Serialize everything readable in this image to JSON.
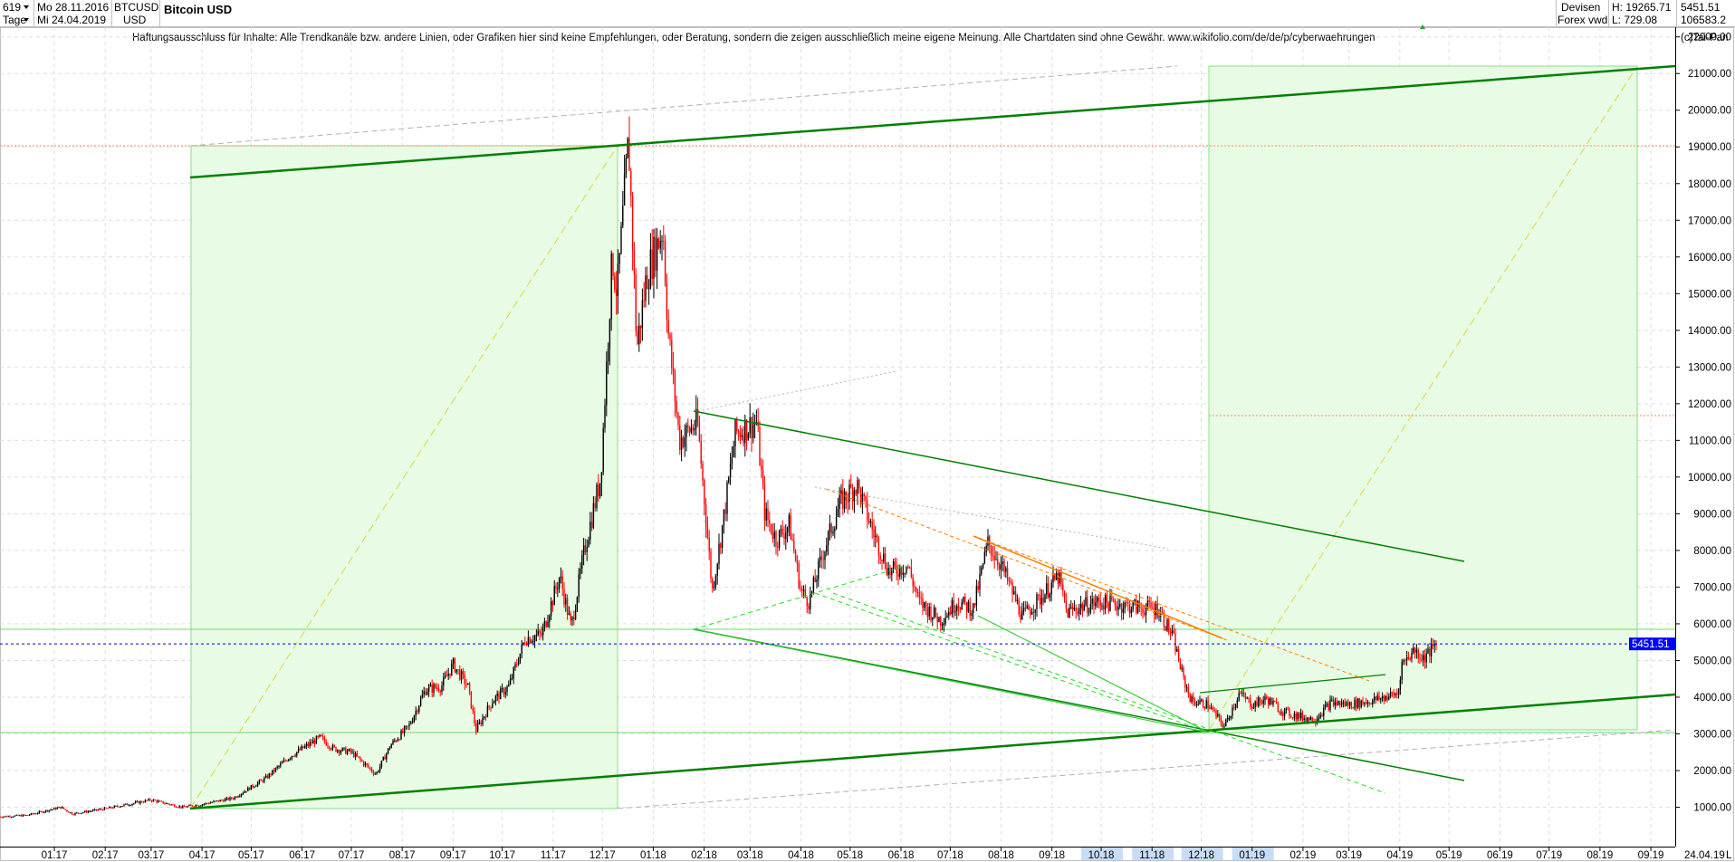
{
  "header": {
    "bar_count": "619",
    "from_date": "Mo 28.11.2016",
    "interval": "Tage",
    "to_date": "Mi 24.04.2019",
    "symbol": "BTCUSD",
    "currency": "USD",
    "title": "Bitcoin USD",
    "market": "Devisen",
    "source": "Forex vwd",
    "high": "H: 19265.71",
    "low": "L: 729.08",
    "last": "5451.51",
    "volume": "106583.2",
    "copyright": "(c)Tai-Pan",
    "disclaimer": "Haftungsausschluss für Inhalte: Alle Trendkanäle bzw. andere Linien, oder Grafiken hier sind keine Empfehlungen, oder Beratung, sondern die zeigen ausschließlich meine eigene Meinung. Alle Chartdaten sind ohne Gewähr.  www.wikifolio.com/de/de/p/cyberwaehrungen",
    "last_date": "24.04.19",
    "axis_marker": "L"
  },
  "chart_data": {
    "type": "candlestick",
    "title": "Bitcoin USD",
    "ylim": [
      1000,
      22000
    ],
    "y_ticks": [
      "1000.00",
      "2000.00",
      "3000.00",
      "4000.00",
      "5000.00",
      "6000.00",
      "7000.00",
      "8000.00",
      "9000.00",
      "10000.00",
      "11000.00",
      "12000.00",
      "13000.00",
      "14000.00",
      "15000.00",
      "16000.00",
      "17000.00",
      "18000.00",
      "19000.00",
      "20000.00",
      "21000.00",
      "22000.00"
    ],
    "x_ticks": [
      "01.17",
      "02.17",
      "03.17",
      "04.17",
      "05.17",
      "06.17",
      "07.17",
      "08.17",
      "09.17",
      "10.17",
      "11.17",
      "12.17",
      "01.18",
      "02.18",
      "03.18",
      "04.18",
      "05.18",
      "06.18",
      "07.18",
      "08.18",
      "09.18",
      "10.18",
      "11.18",
      "12.18",
      "01.19",
      "02.19",
      "03.19",
      "04.19",
      "05.19",
      "06.19",
      "07.19",
      "08.19",
      "09.19"
    ],
    "x_ticks_highlighted": [
      "10.18",
      "11.18",
      "12.18",
      "01.19"
    ],
    "last_price": 5451.51,
    "last_label": "5451.51",
    "price_path": [
      [
        "2016-11-28",
        740
      ],
      [
        "2016-12-15",
        780
      ],
      [
        "2017-01-05",
        1000
      ],
      [
        "2017-01-12",
        820
      ],
      [
        "2017-02-01",
        960
      ],
      [
        "2017-03-01",
        1200
      ],
      [
        "2017-03-20",
        1000
      ],
      [
        "2017-04-01",
        1080
      ],
      [
        "2017-04-20",
        1250
      ],
      [
        "2017-05-10",
        1800
      ],
      [
        "2017-05-25",
        2400
      ],
      [
        "2017-06-12",
        2900
      ],
      [
        "2017-06-20",
        2600
      ],
      [
        "2017-07-01",
        2500
      ],
      [
        "2017-07-16",
        1900
      ],
      [
        "2017-07-25",
        2700
      ],
      [
        "2017-08-05",
        3200
      ],
      [
        "2017-08-15",
        4200
      ],
      [
        "2017-08-25",
        4300
      ],
      [
        "2017-09-01",
        4900
      ],
      [
        "2017-09-10",
        4300
      ],
      [
        "2017-09-15",
        3100
      ],
      [
        "2017-09-25",
        3900
      ],
      [
        "2017-10-05",
        4300
      ],
      [
        "2017-10-15",
        5600
      ],
      [
        "2017-10-25",
        5700
      ],
      [
        "2017-11-05",
        7300
      ],
      [
        "2017-11-12",
        5900
      ],
      [
        "2017-11-20",
        8000
      ],
      [
        "2017-11-30",
        10000
      ],
      [
        "2017-12-07",
        16000
      ],
      [
        "2017-12-10",
        15000
      ],
      [
        "2017-12-17",
        19200
      ],
      [
        "2017-12-22",
        13500
      ],
      [
        "2017-12-28",
        15500
      ],
      [
        "2018-01-07",
        16800
      ],
      [
        "2018-01-10",
        14000
      ],
      [
        "2018-01-17",
        11000
      ],
      [
        "2018-01-28",
        11500
      ],
      [
        "2018-02-06",
        6900
      ],
      [
        "2018-02-13",
        8900
      ],
      [
        "2018-02-20",
        11200
      ],
      [
        "2018-03-05",
        11500
      ],
      [
        "2018-03-10",
        9000
      ],
      [
        "2018-03-17",
        8300
      ],
      [
        "2018-03-25",
        8700
      ],
      [
        "2018-04-01",
        6900
      ],
      [
        "2018-04-06",
        6600
      ],
      [
        "2018-04-15",
        8000
      ],
      [
        "2018-04-25",
        9300
      ],
      [
        "2018-05-05",
        9800
      ],
      [
        "2018-05-15",
        8500
      ],
      [
        "2018-05-25",
        7400
      ],
      [
        "2018-06-05",
        7600
      ],
      [
        "2018-06-12",
        6600
      ],
      [
        "2018-06-25",
        6100
      ],
      [
        "2018-07-05",
        6600
      ],
      [
        "2018-07-15",
        6400
      ],
      [
        "2018-07-24",
        8200
      ],
      [
        "2018-08-01",
        7600
      ],
      [
        "2018-08-14",
        6200
      ],
      [
        "2018-08-25",
        6700
      ],
      [
        "2018-09-05",
        7300
      ],
      [
        "2018-09-10",
        6300
      ],
      [
        "2018-09-20",
        6500
      ],
      [
        "2018-10-01",
        6600
      ],
      [
        "2018-10-15",
        6500
      ],
      [
        "2018-10-25",
        6450
      ],
      [
        "2018-11-05",
        6400
      ],
      [
        "2018-11-14",
        5600
      ],
      [
        "2018-11-20",
        4500
      ],
      [
        "2018-11-25",
        3900
      ],
      [
        "2018-12-05",
        3800
      ],
      [
        "2018-12-15",
        3200
      ],
      [
        "2018-12-24",
        4100
      ],
      [
        "2019-01-01",
        3800
      ],
      [
        "2019-01-10",
        3950
      ],
      [
        "2019-01-20",
        3600
      ],
      [
        "2019-02-01",
        3450
      ],
      [
        "2019-02-08",
        3400
      ],
      [
        "2019-02-18",
        3850
      ],
      [
        "2019-03-01",
        3800
      ],
      [
        "2019-03-15",
        3900
      ],
      [
        "2019-03-31",
        4100
      ],
      [
        "2019-04-02",
        4900
      ],
      [
        "2019-04-10",
        5300
      ],
      [
        "2019-04-15",
        5050
      ],
      [
        "2019-04-24",
        5451.51
      ]
    ]
  },
  "colors": {
    "up": "#000000",
    "down": "#ff0000",
    "trend_strong": "#008000",
    "trend_light": "#33cc33",
    "fill_green": "#e8fbe4",
    "dashed_green": "#22dd22",
    "dashed_yellow": "#d9d936",
    "dashed_orange": "#ff8000",
    "dotted_grey": "#b0b0b0",
    "last_line": "#0000ff",
    "grid": "#dddddd"
  }
}
